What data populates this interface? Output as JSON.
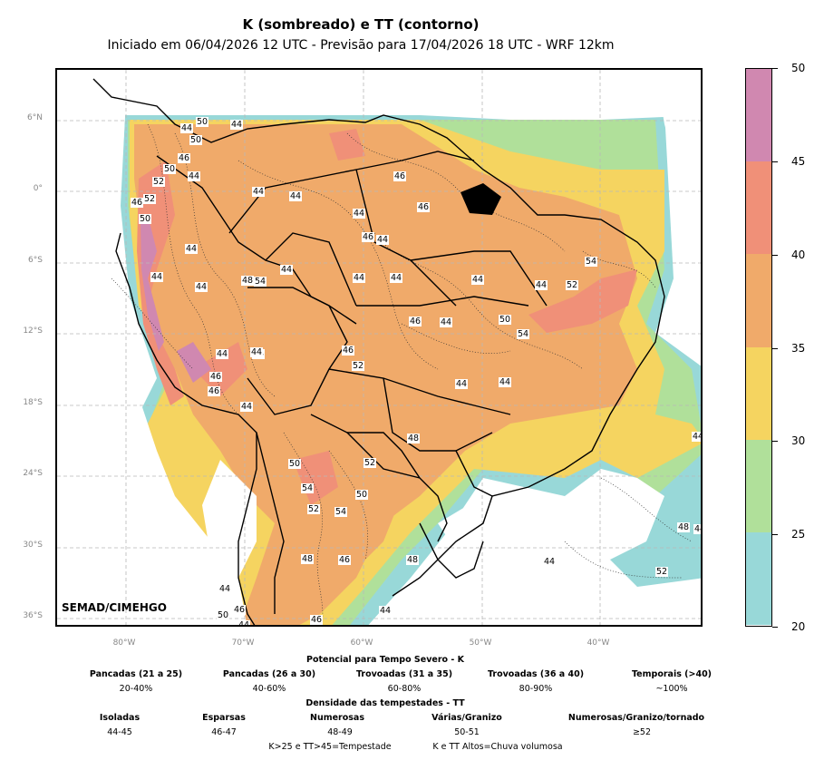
{
  "title": "K (sombreado) e TT (contorno)",
  "subtitle": "Iniciado em 06/04/2026 12 UTC - Previsão para 17/04/2026 18 UTC - WRF 12km",
  "credit": "SEMAD/CIMEHGO",
  "lat_labels": [
    "6°N",
    "0°",
    "6°S",
    "12°S",
    "18°S",
    "24°S",
    "30°S",
    "36°S"
  ],
  "lon_labels": [
    "80°W",
    "70°W",
    "60°W",
    "50°W",
    "40°W"
  ],
  "colorbar": {
    "ticks": [
      "50",
      "45",
      "40",
      "35",
      "30",
      "25",
      "20"
    ],
    "colors": [
      "#d088b0",
      "#f09078",
      "#f0aa6a",
      "#f5d460",
      "#b0e09a",
      "#98d8d8"
    ]
  },
  "tt_labels": [
    "44",
    "50",
    "44",
    "50",
    "46",
    "50",
    "44",
    "52",
    "46",
    "52",
    "50",
    "44",
    "44",
    "44",
    "44",
    "46",
    "46",
    "44",
    "44",
    "46",
    "48",
    "54",
    "44",
    "44",
    "44",
    "44",
    "44",
    "44",
    "52",
    "54",
    "44",
    "46",
    "50",
    "54",
    "44",
    "46",
    "52",
    "44",
    "44",
    "46",
    "44",
    "44",
    "44",
    "46",
    "48",
    "44",
    "50",
    "52",
    "54",
    "52",
    "54",
    "50",
    "48",
    "46",
    "48",
    "48",
    "44",
    "44",
    "46",
    "50",
    "44",
    "52",
    "44",
    "46",
    "44"
  ],
  "legend": {
    "k_title": "Potencial para Tempo Severo - K",
    "k_items": [
      {
        "name": "Pancadas (21 a 25)",
        "value": "20-40%"
      },
      {
        "name": "Pancadas (26 a 30)",
        "value": "40-60%"
      },
      {
        "name": "Trovoadas (31 a 35)",
        "value": "60-80%"
      },
      {
        "name": "Trovoadas (36 a 40)",
        "value": "80-90%"
      },
      {
        "name": "Temporais (>40)",
        "value": "~100%"
      }
    ],
    "tt_title": "Densidade das tempestades - TT",
    "tt_items": [
      {
        "name": "Isoladas",
        "value": "44-45"
      },
      {
        "name": "Esparsas",
        "value": "46-47"
      },
      {
        "name": "Numerosas",
        "value": "48-49"
      },
      {
        "name": "Várias/Granizo",
        "value": "50-51"
      },
      {
        "name": "Numerosas/Granizo/tornado",
        "value": "≥52"
      }
    ],
    "note1": "K>25 e TT>45=Tempestade",
    "note2": "K e TT Altos=Chuva volumosa"
  }
}
